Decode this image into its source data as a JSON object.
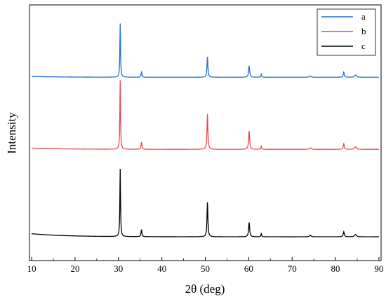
{
  "chart_data": {
    "type": "line",
    "title": "",
    "xlabel": "2θ (deg)",
    "ylabel": "Intensity",
    "xlim": [
      9.5,
      90.5
    ],
    "xticks": [
      10,
      20,
      30,
      40,
      50,
      60,
      70,
      80,
      90
    ],
    "ylim": [
      0,
      1
    ],
    "yticks_shown": false,
    "grid": false,
    "legend": {
      "position": "top-right",
      "boxed": true
    },
    "peaks_2theta": [
      30.4,
      35.3,
      50.5,
      60.1,
      62.9,
      74.2,
      81.9,
      84.6
    ],
    "series": [
      {
        "name": "a",
        "color": "#1f6fd1",
        "baseline": 0.717,
        "initial_background": 0.003,
        "peak_heights": [
          0.21,
          0.02,
          0.08,
          0.045,
          0.012,
          0.005,
          0.02,
          0.009
        ]
      },
      {
        "name": "b",
        "color": "#e8474a",
        "baseline": 0.435,
        "initial_background": 0.005,
        "peak_heights": [
          0.27,
          0.028,
          0.138,
          0.072,
          0.012,
          0.006,
          0.022,
          0.01
        ]
      },
      {
        "name": "c",
        "color": "#000000",
        "baseline": 0.093,
        "initial_background": 0.012,
        "peak_heights": [
          0.265,
          0.028,
          0.135,
          0.056,
          0.012,
          0.006,
          0.02,
          0.009
        ]
      }
    ]
  }
}
